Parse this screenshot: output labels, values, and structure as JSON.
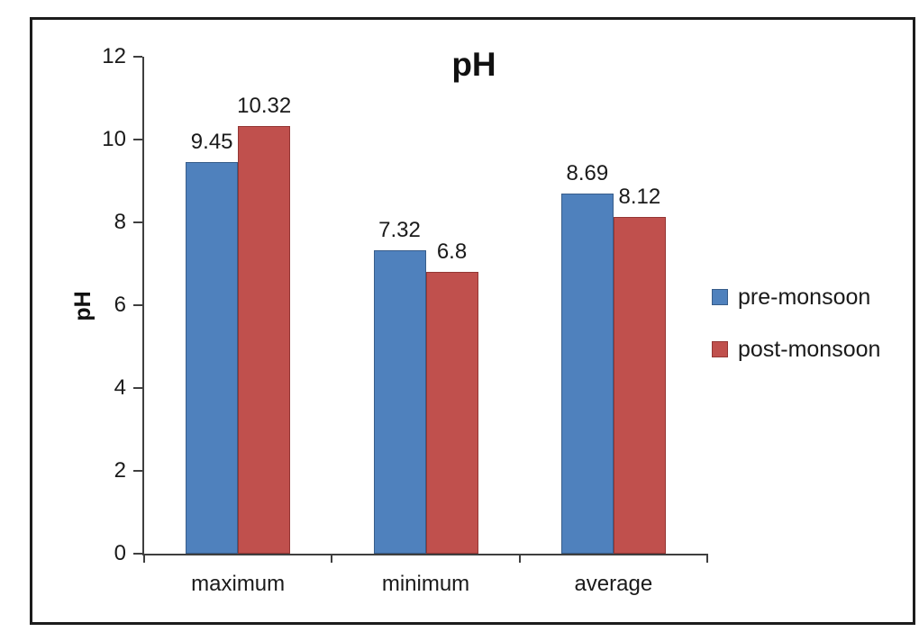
{
  "chart_data": {
    "type": "bar",
    "title": "pH",
    "ylabel": "pH",
    "xlabel": "",
    "categories": [
      "maximum",
      "minimum",
      "average"
    ],
    "series": [
      {
        "name": "pre-monsoon",
        "color": "#4f81bd",
        "border_color": "#385d8a",
        "values": [
          9.45,
          7.32,
          8.69
        ]
      },
      {
        "name": "post-monsoon",
        "color": "#c0504d",
        "border_color": "#943634",
        "values": [
          10.32,
          6.8,
          8.12
        ]
      }
    ],
    "y_ticks": [
      0,
      2,
      4,
      6,
      8,
      10,
      12
    ],
    "ylim": [
      0,
      12
    ],
    "grid": false,
    "data_labels": true,
    "legend_position": "right"
  },
  "frame": {
    "background": "#ffffff",
    "border_color": "#1c1c1c",
    "axis_color": "#3f3f3f",
    "text_color": "#1a1a1a"
  }
}
